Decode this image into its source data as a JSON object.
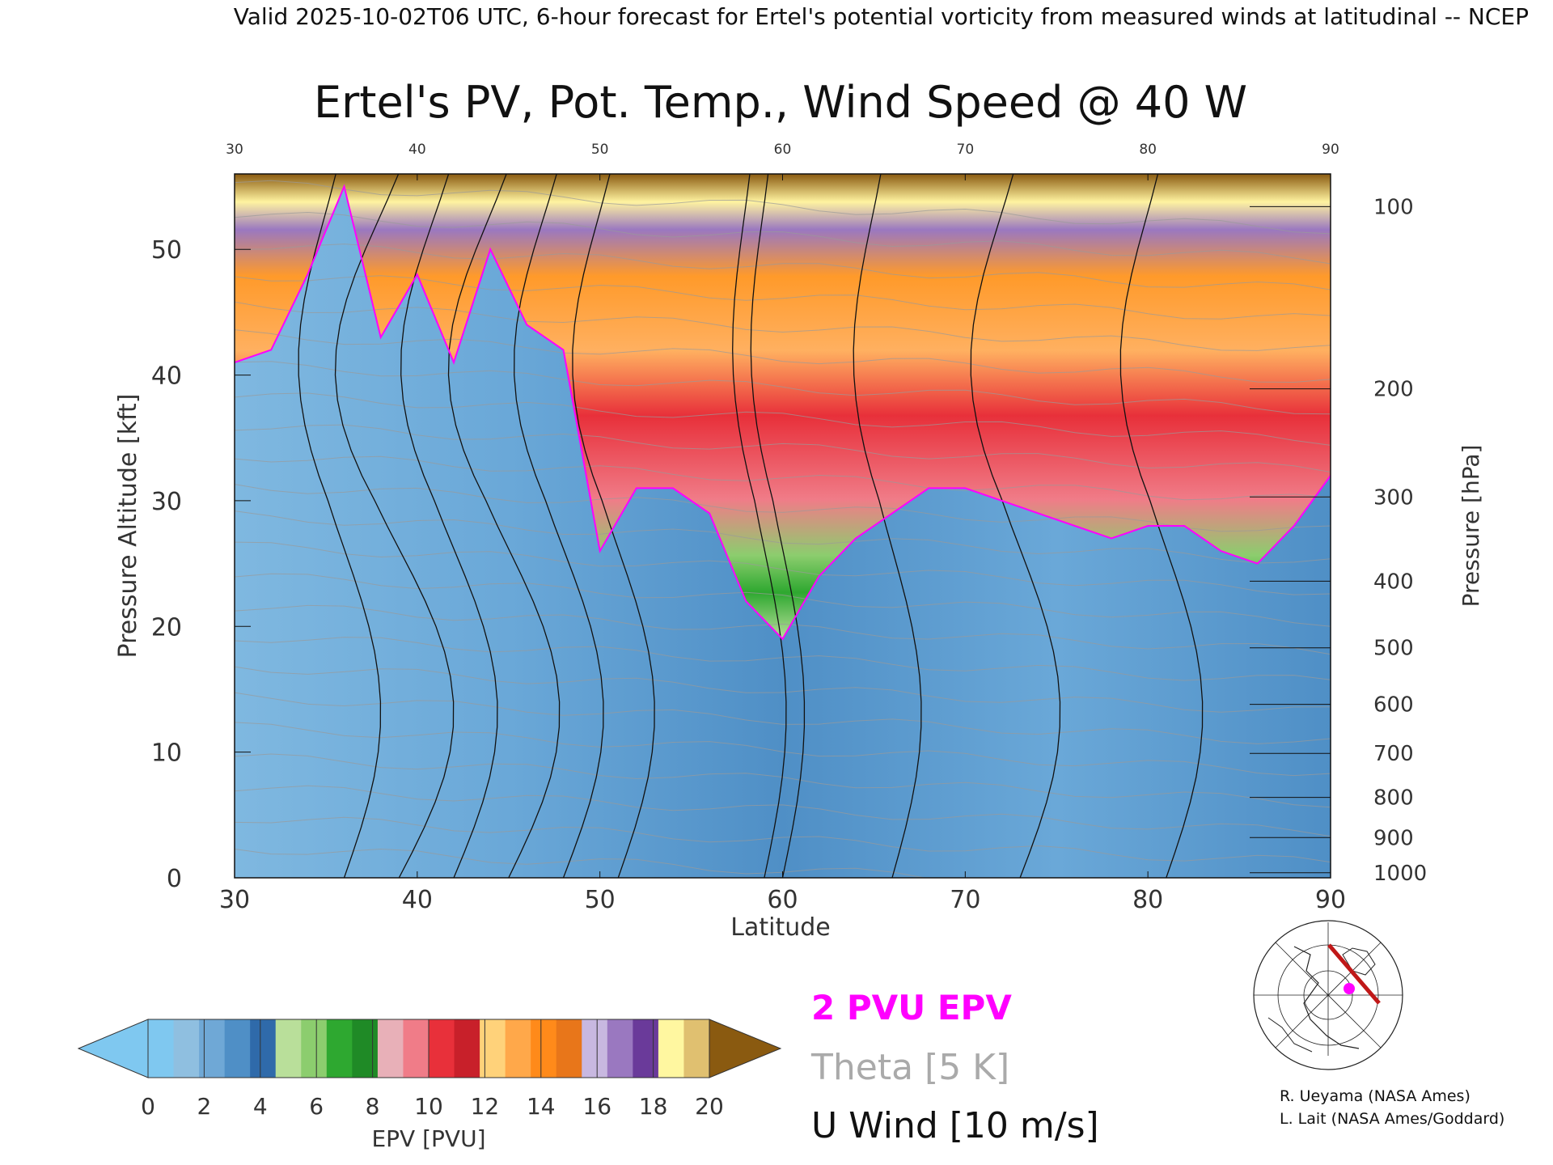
{
  "header": {
    "valid_line": "Valid 2025-10-02T06 UTC, 6-hour forecast for Ertel's potential vorticity from measured winds at latitudinal -- NCEP"
  },
  "chart_data": {
    "type": "heatmap",
    "title": "Ertel's PV, Pot. Temp., Wind Speed @ 40 W",
    "xlabel": "Latitude",
    "ylabel": "Pressure Altitude [kft]",
    "y2label": "Pressure [hPa]",
    "xlim": [
      30,
      90
    ],
    "ylim": [
      0,
      56
    ],
    "x_ticks": [
      "30",
      "40",
      "50",
      "60",
      "70",
      "80",
      "90"
    ],
    "top_x_ticks": [
      "30",
      "40",
      "50",
      "60",
      "70",
      "80",
      "90"
    ],
    "y_ticks": [
      "0",
      "10",
      "20",
      "30",
      "40",
      "50"
    ],
    "y_tick_values": [
      0,
      10,
      20,
      30,
      40,
      50
    ],
    "pressure_ticks": [
      {
        "label": "100",
        "alt": 53.4
      },
      {
        "label": "200",
        "alt": 38.9
      },
      {
        "label": "300",
        "alt": 30.3
      },
      {
        "label": "400",
        "alt": 23.6
      },
      {
        "label": "500",
        "alt": 18.3
      },
      {
        "label": "600",
        "alt": 13.8
      },
      {
        "label": "700",
        "alt": 9.9
      },
      {
        "label": "800",
        "alt": 6.4
      },
      {
        "label": "900",
        "alt": 3.2
      },
      {
        "label": "1000",
        "alt": 0.4
      }
    ],
    "tropopause_2pvu_alt_kft": {
      "lat": [
        30,
        32,
        34,
        36,
        38,
        40,
        42,
        44,
        46,
        48,
        50,
        52,
        54,
        56,
        58,
        60,
        62,
        64,
        66,
        68,
        70,
        72,
        74,
        76,
        78,
        80,
        82,
        84,
        86,
        88,
        90
      ],
      "alt": [
        41,
        42,
        48,
        55,
        43,
        48,
        41,
        50,
        44,
        42,
        26,
        31,
        31,
        29,
        22,
        19,
        24,
        27,
        29,
        31,
        31,
        30,
        29,
        28,
        27,
        28,
        28,
        26,
        25,
        28,
        32
      ]
    },
    "epv_colorbar": {
      "label": "EPV [PVU]",
      "ticks": [
        "0",
        "2",
        "4",
        "6",
        "8",
        "10",
        "12",
        "14",
        "16",
        "18",
        "20"
      ],
      "boundaries": [
        0,
        1,
        2,
        3,
        4,
        5,
        6,
        7,
        8,
        9,
        10,
        11,
        12,
        13,
        14,
        15,
        16,
        17,
        18,
        19,
        20
      ],
      "colors": [
        "#7fc8f0",
        "#8fbfe0",
        "#6fa8d6",
        "#4f8fc6",
        "#2f6aaa",
        "#b9df9a",
        "#8ccd6e",
        "#2ea830",
        "#1f8a26",
        "#e8b0b8",
        "#f07c88",
        "#e8303a",
        "#c8202a",
        "#ffd27a",
        "#ffa84a",
        "#ff8a1a",
        "#e8761a",
        "#c8b8e0",
        "#9a78c0",
        "#6a3a9a",
        "#fff7a0",
        "#e0c070"
      ],
      "under_color": "#7fc8f0",
      "over_color": "#8a5a10"
    },
    "legend": [
      {
        "label": "2 PVU EPV",
        "color": "#ff00ff"
      },
      {
        "label": "Theta [5 K]",
        "color": "#aaaaaa"
      },
      {
        "label": "U Wind [10 m/s]",
        "color": "#111111"
      }
    ]
  },
  "credits": {
    "line1": "R. Ueyama (NASA Ames)",
    "line2": "L. Lait (NASA Ames/Goddard)"
  },
  "colors": {
    "stratosphere_red": "#e8303a",
    "stratosphere_orange": "#ff9a2a",
    "troposphere_blue": "#5a9fd4",
    "tropopause_line": "#ff00ff",
    "section_track": "#c01818"
  }
}
